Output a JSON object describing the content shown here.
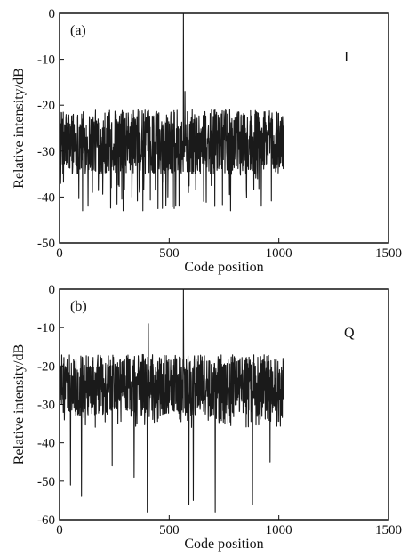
{
  "chart_data": [
    {
      "type": "line",
      "panel_label": "(a)",
      "channel_label": "I",
      "xlabel": "Code position",
      "ylabel": "Relative intensity/dB",
      "xlim": [
        0,
        1500
      ],
      "ylim": [
        -50,
        0
      ],
      "xticks": [
        0,
        500,
        1000,
        1500
      ],
      "yticks": [
        0,
        -10,
        -20,
        -30,
        -40,
        -50
      ],
      "grid": false,
      "series": [
        {
          "color": "#1a1a1a",
          "x_range": [
            0,
            1023
          ],
          "noise_floor_db": [
            -43,
            -20
          ],
          "typical_band_db": [
            -35,
            -21
          ],
          "peak": {
            "x": 565,
            "y": 0
          },
          "sidelobe_after_peak": {
            "x": 572,
            "y": -17
          },
          "deep_nulls": [
            {
              "x": 105,
              "y": -43
            },
            {
              "x": 130,
              "y": -42
            },
            {
              "x": 150,
              "y": -39
            },
            {
              "x": 290,
              "y": -43
            },
            {
              "x": 330,
              "y": -40
            },
            {
              "x": 380,
              "y": -43
            },
            {
              "x": 530,
              "y": -42
            },
            {
              "x": 545,
              "y": -42
            },
            {
              "x": 780,
              "y": -43
            },
            {
              "x": 920,
              "y": -42
            }
          ]
        }
      ]
    },
    {
      "type": "line",
      "panel_label": "(b)",
      "channel_label": "Q",
      "xlabel": "Code position",
      "ylabel": "Relative intensity/dB",
      "xlim": [
        0,
        1500
      ],
      "ylim": [
        -60,
        0
      ],
      "xticks": [
        0,
        500,
        1000,
        1500
      ],
      "yticks": [
        0,
        -10,
        -20,
        -30,
        -40,
        -50,
        -60
      ],
      "grid": false,
      "series": [
        {
          "color": "#1a1a1a",
          "x_range": [
            0,
            1023
          ],
          "noise_floor_db": [
            -36,
            -16
          ],
          "typical_band_db": [
            -33,
            -17
          ],
          "peak": {
            "x": 565,
            "y": 0
          },
          "secondary_peak": {
            "x": 405,
            "y": -9
          },
          "deep_nulls": [
            {
              "x": 50,
              "y": -51
            },
            {
              "x": 100,
              "y": -54
            },
            {
              "x": 340,
              "y": -49
            },
            {
              "x": 400,
              "y": -58
            },
            {
              "x": 590,
              "y": -56
            },
            {
              "x": 610,
              "y": -55
            },
            {
              "x": 710,
              "y": -58
            },
            {
              "x": 880,
              "y": -56
            },
            {
              "x": 240,
              "y": -46
            },
            {
              "x": 960,
              "y": -45
            }
          ]
        }
      ]
    }
  ]
}
